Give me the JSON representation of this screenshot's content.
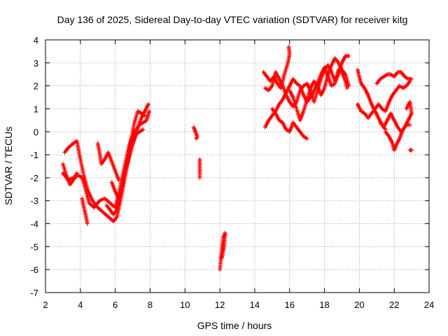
{
  "chart_data": {
    "type": "scatter",
    "title": "Day 136 of 2025, Sidereal Day-to-day VTEC variation (SDTVAR) for receiver kitg",
    "xlabel": "GPS time / hours",
    "ylabel": "SDTVAR / TECUs",
    "xlim": [
      2,
      24
    ],
    "ylim": [
      -7,
      4
    ],
    "xticks": [
      "2",
      "4",
      "6",
      "8",
      "10",
      "12",
      "14",
      "16",
      "18",
      "20",
      "22",
      "24"
    ],
    "yticks": [
      "4",
      "3",
      "2",
      "1",
      "0",
      "-1",
      "-2",
      "-3",
      "-4",
      "-5",
      "-6",
      "-7"
    ],
    "grid": true,
    "marker": "plus",
    "marker_color": "#ff0000",
    "series_tracks": [
      [
        [
          3.0,
          -1.4
        ],
        [
          3.2,
          -1.9
        ],
        [
          3.4,
          -2.3
        ],
        [
          3.6,
          -2.1
        ],
        [
          3.8,
          -1.8
        ]
      ],
      [
        [
          3.1,
          -0.9
        ],
        [
          3.3,
          -0.7
        ],
        [
          3.6,
          -0.5
        ],
        [
          3.8,
          -0.4
        ],
        [
          4.0,
          -1.2
        ],
        [
          4.2,
          -1.9
        ],
        [
          4.4,
          -2.5
        ],
        [
          4.7,
          -3.0
        ],
        [
          5.0,
          -3.3
        ],
        [
          5.3,
          -3.5
        ],
        [
          5.6,
          -3.7
        ],
        [
          5.9,
          -3.9
        ],
        [
          6.1,
          -3.7
        ],
        [
          6.3,
          -3.0
        ],
        [
          6.5,
          -2.2
        ],
        [
          6.7,
          -1.4
        ],
        [
          6.9,
          -0.8
        ],
        [
          7.1,
          -0.3
        ],
        [
          7.3,
          0.2
        ],
        [
          7.5,
          0.6
        ],
        [
          7.7,
          0.9
        ],
        [
          7.9,
          1.2
        ]
      ],
      [
        [
          3.0,
          -1.8
        ],
        [
          3.3,
          -2.1
        ],
        [
          3.6,
          -2.0
        ],
        [
          3.9,
          -1.9
        ],
        [
          4.1,
          -2.0
        ],
        [
          4.3,
          -2.5
        ],
        [
          4.5,
          -3.1
        ],
        [
          4.8,
          -3.3
        ],
        [
          5.1,
          -3.0
        ],
        [
          5.4,
          -2.9
        ],
        [
          5.7,
          -3.1
        ],
        [
          6.0,
          -3.3
        ],
        [
          6.2,
          -2.7
        ],
        [
          6.4,
          -2.0
        ],
        [
          6.6,
          -1.3
        ],
        [
          6.8,
          -0.6
        ],
        [
          7.0,
          -0.2
        ],
        [
          7.2,
          0.1
        ],
        [
          7.4,
          0.3
        ],
        [
          7.6,
          0.4
        ],
        [
          7.8,
          0.5
        ],
        [
          7.95,
          0.9
        ]
      ],
      [
        [
          4.1,
          -2.9
        ],
        [
          4.2,
          -3.3
        ],
        [
          4.3,
          -3.6
        ],
        [
          4.4,
          -4.0
        ]
      ],
      [
        [
          5.0,
          -0.5
        ],
        [
          5.1,
          -0.9
        ],
        [
          5.2,
          -1.4
        ],
        [
          5.4,
          -1.2
        ],
        [
          5.6,
          -0.9
        ],
        [
          5.8,
          -1.3
        ],
        [
          6.0,
          -1.7
        ],
        [
          6.2,
          -2.1
        ]
      ],
      [
        [
          5.8,
          -2.2
        ],
        [
          6.0,
          -2.6
        ],
        [
          6.2,
          -2.9
        ],
        [
          6.4,
          -2.4
        ],
        [
          6.6,
          -1.7
        ],
        [
          6.8,
          -1.0
        ],
        [
          7.0,
          -0.5
        ],
        [
          7.2,
          -0.1
        ],
        [
          7.4,
          0.0
        ],
        [
          7.6,
          0.1
        ]
      ],
      [
        [
          5.5,
          -3.2
        ],
        [
          5.7,
          -3.4
        ],
        [
          5.9,
          -3.6
        ],
        [
          6.1,
          -3.4
        ],
        [
          6.3,
          -2.7
        ],
        [
          6.5,
          -1.8
        ],
        [
          6.7,
          -1.1
        ],
        [
          6.9,
          -0.4
        ],
        [
          7.1,
          0.4
        ],
        [
          7.3,
          0.9
        ],
        [
          7.5,
          0.8
        ],
        [
          7.7,
          0.7
        ]
      ],
      [
        [
          10.5,
          0.2
        ],
        [
          10.6,
          0.0
        ],
        [
          10.7,
          -0.2
        ],
        [
          10.65,
          -0.3
        ]
      ],
      [
        [
          10.85,
          -1.2
        ],
        [
          10.85,
          -1.5
        ],
        [
          10.85,
          -1.8
        ],
        [
          10.85,
          -2.0
        ]
      ],
      [
        [
          12.0,
          -6.0
        ],
        [
          12.05,
          -5.6
        ],
        [
          12.1,
          -5.2
        ],
        [
          12.15,
          -4.9
        ],
        [
          12.2,
          -4.6
        ],
        [
          12.3,
          -4.4
        ],
        [
          12.25,
          -5.0
        ],
        [
          12.1,
          -5.5
        ]
      ],
      [
        [
          14.5,
          2.6
        ],
        [
          14.7,
          2.4
        ],
        [
          14.9,
          2.2
        ],
        [
          15.1,
          2.4
        ],
        [
          15.3,
          2.1
        ],
        [
          15.5,
          1.9
        ],
        [
          15.7,
          2.5
        ],
        [
          15.9,
          3.0
        ],
        [
          16.0,
          3.4
        ],
        [
          15.95,
          3.7
        ]
      ],
      [
        [
          14.6,
          1.9
        ],
        [
          14.8,
          1.8
        ],
        [
          15.0,
          2.0
        ],
        [
          15.2,
          2.6
        ],
        [
          15.4,
          2.3
        ],
        [
          15.6,
          2.0
        ],
        [
          15.8,
          1.6
        ],
        [
          16.0,
          1.3
        ],
        [
          16.2,
          1.1
        ],
        [
          16.4,
          1.3
        ],
        [
          16.6,
          1.8
        ],
        [
          16.8,
          2.0
        ],
        [
          17.0,
          2.1
        ],
        [
          17.2,
          1.8
        ],
        [
          17.4,
          1.3
        ],
        [
          17.6,
          1.8
        ],
        [
          17.8,
          2.3
        ],
        [
          18.0,
          2.7
        ],
        [
          18.2,
          2.9
        ],
        [
          18.4,
          2.6
        ],
        [
          18.6,
          2.2
        ],
        [
          18.8,
          2.5
        ],
        [
          19.0,
          3.0
        ],
        [
          19.2,
          3.3
        ],
        [
          19.4,
          3.3
        ]
      ],
      [
        [
          14.6,
          0.2
        ],
        [
          14.8,
          0.5
        ],
        [
          15.0,
          0.7
        ],
        [
          15.2,
          0.9
        ],
        [
          15.4,
          1.2
        ],
        [
          15.6,
          1.4
        ],
        [
          15.8,
          1.7
        ],
        [
          16.0,
          2.0
        ],
        [
          16.2,
          2.3
        ],
        [
          16.4,
          2.1
        ],
        [
          16.6,
          2.0
        ],
        [
          16.8,
          1.6
        ],
        [
          17.0,
          1.3
        ],
        [
          17.2,
          1.5
        ],
        [
          17.4,
          1.8
        ],
        [
          17.6,
          2.1
        ],
        [
          17.8,
          2.5
        ],
        [
          18.0,
          2.8
        ],
        [
          18.2,
          2.4
        ],
        [
          18.4,
          2.0
        ],
        [
          18.6,
          2.1
        ],
        [
          18.8,
          2.7
        ],
        [
          19.0,
          2.6
        ],
        [
          19.2,
          2.2
        ],
        [
          19.3,
          1.9
        ]
      ],
      [
        [
          15.0,
          1.0
        ],
        [
          15.2,
          0.8
        ],
        [
          15.4,
          0.5
        ],
        [
          15.6,
          0.4
        ],
        [
          15.8,
          0.1
        ],
        [
          16.0,
          0.0
        ],
        [
          16.2,
          0.4
        ],
        [
          16.4,
          0.2
        ],
        [
          16.6,
          0.0
        ],
        [
          16.8,
          -0.2
        ],
        [
          17.0,
          -0.3
        ]
      ],
      [
        [
          16.0,
          1.8
        ],
        [
          16.2,
          1.5
        ],
        [
          16.4,
          1.0
        ],
        [
          16.6,
          0.5
        ],
        [
          16.8,
          0.9
        ],
        [
          17.0,
          1.4
        ],
        [
          17.2,
          1.9
        ],
        [
          17.4,
          2.2
        ],
        [
          17.6,
          2.0
        ],
        [
          17.8,
          1.6
        ],
        [
          18.0,
          1.9
        ],
        [
          18.2,
          2.5
        ],
        [
          18.4,
          2.9
        ],
        [
          18.6,
          3.2
        ],
        [
          18.8,
          3.0
        ],
        [
          19.0,
          2.7
        ],
        [
          19.2,
          2.5
        ],
        [
          19.4,
          2.0
        ]
      ],
      [
        [
          19.9,
          2.7
        ],
        [
          20.0,
          2.4
        ],
        [
          20.1,
          2.1
        ],
        [
          20.3,
          1.9
        ],
        [
          20.5,
          1.6
        ],
        [
          20.7,
          1.2
        ],
        [
          20.9,
          0.9
        ],
        [
          21.1,
          0.6
        ],
        [
          21.3,
          0.3
        ],
        [
          21.5,
          0.1
        ]
      ],
      [
        [
          19.9,
          1.2
        ],
        [
          20.1,
          0.9
        ],
        [
          20.3,
          0.8
        ],
        [
          20.5,
          0.6
        ],
        [
          20.7,
          0.8
        ],
        [
          20.9,
          1.0
        ],
        [
          21.1,
          1.2
        ],
        [
          21.3,
          1.0
        ],
        [
          21.5,
          0.9
        ],
        [
          21.7,
          1.3
        ],
        [
          21.9,
          1.6
        ],
        [
          22.1,
          1.8
        ],
        [
          22.3,
          2.0
        ],
        [
          22.5,
          1.9
        ],
        [
          22.7,
          2.0
        ],
        [
          22.9,
          2.2
        ]
      ],
      [
        [
          21.0,
          2.1
        ],
        [
          21.2,
          2.3
        ],
        [
          21.4,
          2.4
        ],
        [
          21.6,
          2.5
        ],
        [
          21.8,
          2.5
        ],
        [
          22.0,
          2.4
        ],
        [
          22.2,
          2.6
        ],
        [
          22.4,
          2.6
        ],
        [
          22.6,
          2.4
        ],
        [
          22.8,
          2.3
        ],
        [
          23.0,
          2.3
        ]
      ],
      [
        [
          21.2,
          0.4
        ],
        [
          21.4,
          0.2
        ],
        [
          21.6,
          0.5
        ],
        [
          21.8,
          0.8
        ],
        [
          22.0,
          0.5
        ],
        [
          22.2,
          0.2
        ],
        [
          22.4,
          0.0
        ],
        [
          22.6,
          0.2
        ],
        [
          22.8,
          0.5
        ],
        [
          23.0,
          0.8
        ],
        [
          22.9,
          1.3
        ],
        [
          22.7,
          1.0
        ]
      ],
      [
        [
          21.5,
          0.0
        ],
        [
          21.7,
          -0.2
        ],
        [
          21.9,
          -0.5
        ],
        [
          22.0,
          -0.8
        ],
        [
          22.1,
          -0.6
        ],
        [
          22.3,
          -0.3
        ],
        [
          22.5,
          0.1
        ],
        [
          22.7,
          0.3
        ],
        [
          22.9,
          0.3
        ]
      ],
      [
        [
          22.9,
          -0.8
        ],
        [
          23.0,
          -0.8
        ]
      ]
    ]
  }
}
